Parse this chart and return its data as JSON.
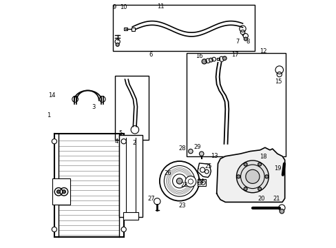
{
  "title": "",
  "bg_color": "#ffffff",
  "line_color": "#000000",
  "label_color": "#000000",
  "fig_width": 4.89,
  "fig_height": 3.6,
  "dpi": 100
}
